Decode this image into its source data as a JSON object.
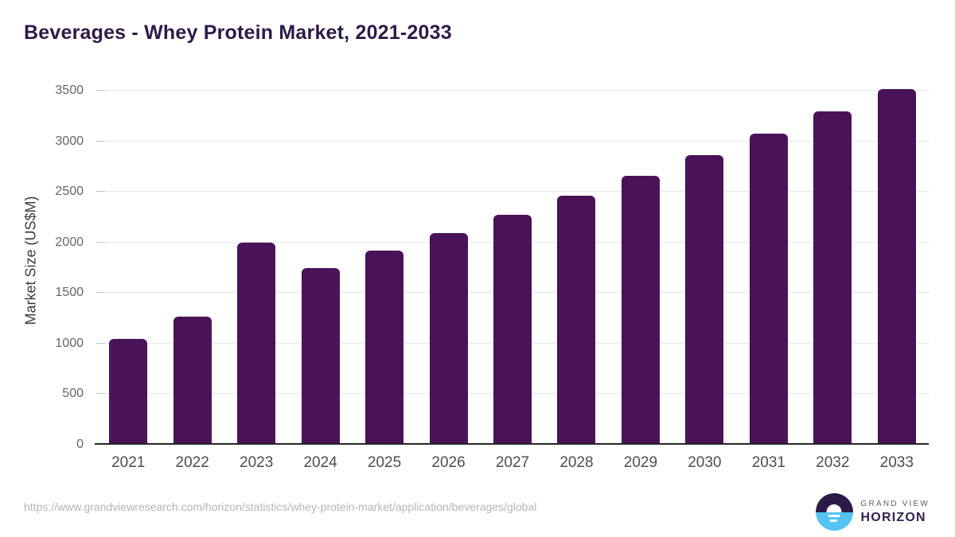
{
  "page": {
    "title": "Beverages - Whey Protein Market, 2021-2033",
    "source_url": "https://www.grandviewresearch.com/horizon/statistics/whey-protein-market/application/beverages/global",
    "brand": {
      "line1": "GRAND VIEW",
      "line2": "HORIZON",
      "logo_icon": "sunrise-horizon-icon"
    }
  },
  "chart_data": {
    "type": "bar",
    "title": "Beverages - Whey Protein Market, 2021-2033",
    "categories": [
      "2021",
      "2022",
      "2023",
      "2024",
      "2025",
      "2026",
      "2027",
      "2028",
      "2029",
      "2030",
      "2031",
      "2032",
      "2033"
    ],
    "values": [
      1045,
      1265,
      2000,
      1745,
      1920,
      2090,
      2270,
      2460,
      2660,
      2860,
      3075,
      3295,
      3520
    ],
    "xlabel": "",
    "ylabel": "Market Size (US$M)",
    "ylim": [
      0,
      3650
    ],
    "yticks": [
      0,
      500,
      1000,
      1500,
      2000,
      2500,
      3000,
      3500
    ],
    "grid": true,
    "legend": false,
    "bar_color": "#4a1259"
  },
  "colors": {
    "background": "#ffffff",
    "title_text": "#2e1a47",
    "bar_fill": "#4a1259",
    "gridline": "#e6e6e6",
    "axis_line": "#262626",
    "y_tick_label": "#666666",
    "y_axis_title": "#3d3d3d",
    "x_tick_label": "#4d4d4d",
    "source_url_text": "#b5b5b5",
    "logo_navy": "#2b1a47",
    "logo_blue": "#55c3f2",
    "brand_line1_text": "#5d5d68",
    "brand_line2_text": "#322051"
  }
}
